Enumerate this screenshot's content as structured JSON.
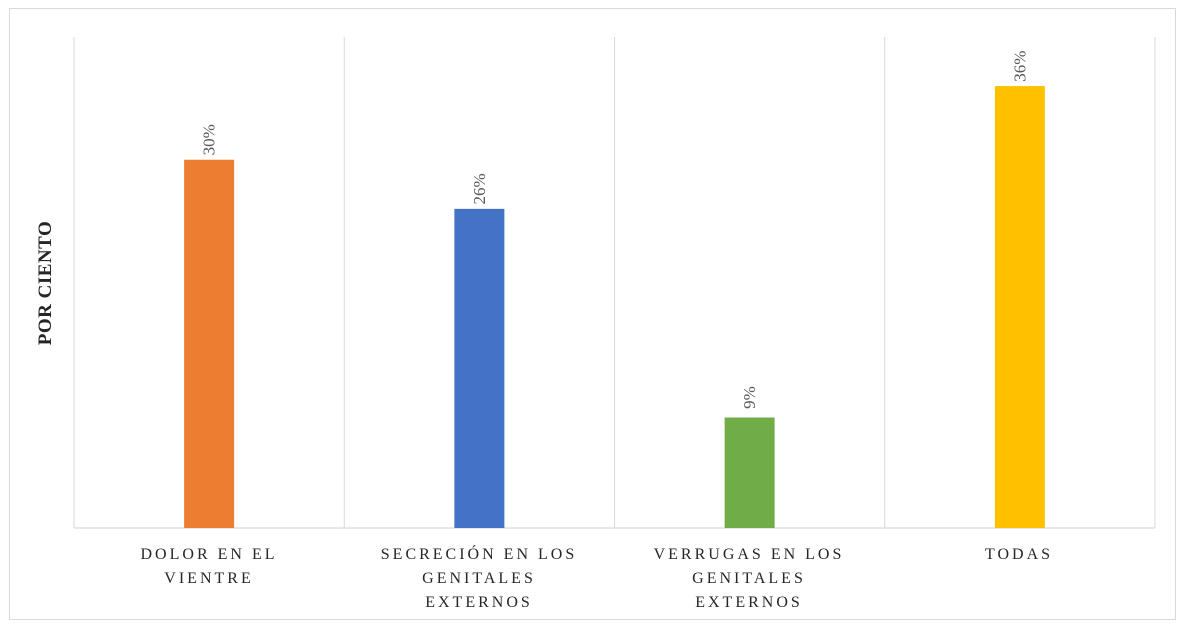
{
  "chart_data": {
    "type": "bar",
    "title": "",
    "xlabel": "",
    "ylabel": "POR CIENTO",
    "categories": [
      "DOLOR EN EL\nVIENTRE",
      "SECRECIÓN EN LOS\nGENITALES\nEXTERNOS",
      "VERRUGAS EN LOS\nGENITALES\nEXTERNOS",
      "TODAS"
    ],
    "values": [
      30,
      26,
      9,
      36
    ],
    "value_labels": [
      "30%",
      "26%",
      "9%",
      "36%"
    ],
    "colors": [
      "#ED7D31",
      "#4472C4",
      "#70AD47",
      "#FFC000"
    ],
    "ylim": [
      0,
      40
    ],
    "grid": "vertical category separators",
    "legend": "none"
  }
}
